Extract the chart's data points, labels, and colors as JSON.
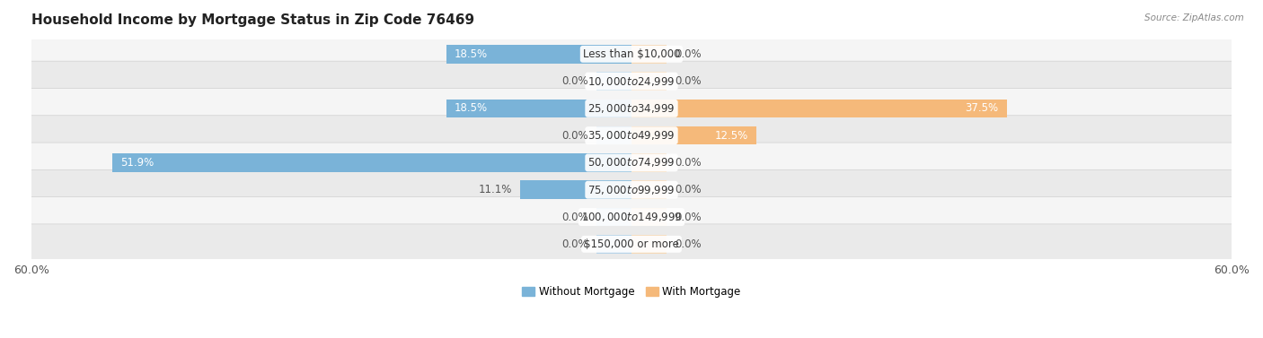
{
  "title": "Household Income by Mortgage Status in Zip Code 76469",
  "source": "Source: ZipAtlas.com",
  "categories": [
    "Less than $10,000",
    "$10,000 to $24,999",
    "$25,000 to $34,999",
    "$35,000 to $49,999",
    "$50,000 to $74,999",
    "$75,000 to $99,999",
    "$100,000 to $149,999",
    "$150,000 or more"
  ],
  "without_mortgage": [
    18.5,
    0.0,
    18.5,
    0.0,
    51.9,
    11.1,
    0.0,
    0.0
  ],
  "with_mortgage": [
    0.0,
    0.0,
    37.5,
    12.5,
    0.0,
    0.0,
    0.0,
    0.0
  ],
  "without_mortgage_color": "#7ab3d8",
  "with_mortgage_color": "#f5b97a",
  "without_mortgage_zero_color": "#b8d4e8",
  "with_mortgage_zero_color": "#f5d9b8",
  "row_bg_light": "#f5f5f5",
  "row_bg_dark": "#eaeaea",
  "row_border_color": "#d0d0d0",
  "max_value": 60.0,
  "zero_bar_width": 3.5,
  "legend_without": "Without Mortgage",
  "legend_with": "With Mortgage",
  "title_fontsize": 11,
  "label_fontsize": 8.5,
  "value_fontsize": 8.5,
  "axis_label_fontsize": 9,
  "background_color": "#ffffff",
  "center_label_bg": "#ffffff"
}
